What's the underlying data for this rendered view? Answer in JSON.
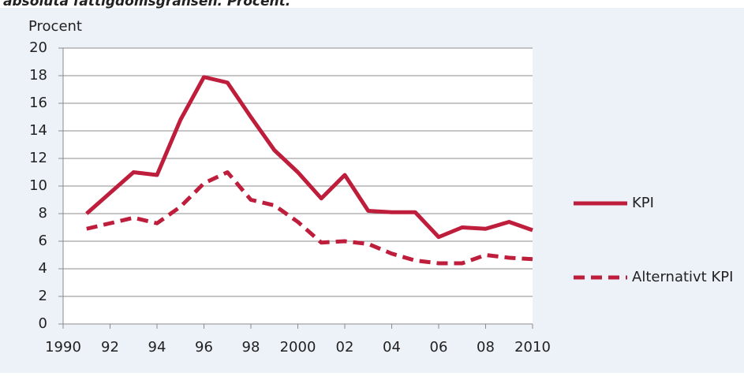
{
  "header": "absoluta fattigdomsgränsen. Procent.",
  "chart_data": {
    "type": "line",
    "y_label": "Procent",
    "x": [
      1991,
      1992,
      1993,
      1994,
      1995,
      1996,
      1997,
      1998,
      1999,
      2000,
      2001,
      2002,
      2003,
      2004,
      2005,
      2006,
      2007,
      2008,
      2009,
      2010
    ],
    "series": [
      {
        "name": "KPI",
        "color": "#be1e3c",
        "dash": "solid",
        "values": [
          8.0,
          9.5,
          11.0,
          10.8,
          14.8,
          17.9,
          17.5,
          15.0,
          12.6,
          11.0,
          9.1,
          10.8,
          8.2,
          8.1,
          8.1,
          6.3,
          7.0,
          6.9,
          7.4,
          6.8
        ]
      },
      {
        "name": "Alternativt KPI",
        "color": "#be1e3c",
        "dash": "dashed",
        "values": [
          6.9,
          7.3,
          7.7,
          7.3,
          8.5,
          10.2,
          11.0,
          9.0,
          8.6,
          7.4,
          5.9,
          6.0,
          5.8,
          5.1,
          4.6,
          4.4,
          4.4,
          5.0,
          4.8,
          4.7
        ]
      }
    ],
    "xlim": [
      1990,
      2010
    ],
    "xticks": [
      1990,
      {
        "value": 1992,
        "label": "92"
      },
      {
        "value": 1994,
        "label": "94"
      },
      {
        "value": 1996,
        "label": "96"
      },
      {
        "value": 1998,
        "label": "98"
      },
      2000,
      {
        "value": 2002,
        "label": "02"
      },
      {
        "value": 2004,
        "label": "04"
      },
      {
        "value": 2006,
        "label": "06"
      },
      {
        "value": 2008,
        "label": "08"
      },
      2010
    ],
    "ylim": [
      0,
      20
    ],
    "yticks": [
      0,
      2,
      4,
      6,
      8,
      10,
      12,
      14,
      16,
      18,
      20
    ],
    "grid": true,
    "legend": "right"
  }
}
